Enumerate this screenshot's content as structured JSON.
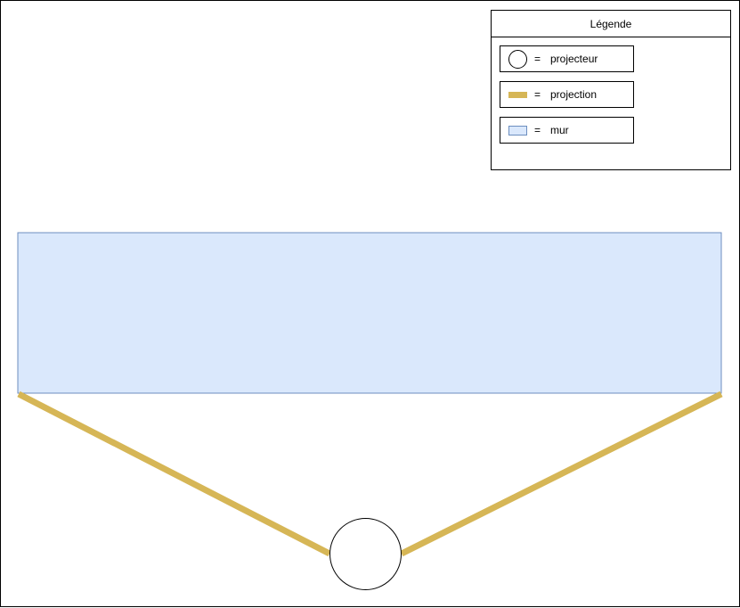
{
  "legend": {
    "title": "Légende",
    "items": [
      {
        "symbol": "=",
        "label": "projecteur",
        "icon": "circle-icon"
      },
      {
        "symbol": "=",
        "label": "projection",
        "icon": "bar-icon"
      },
      {
        "symbol": "=",
        "label": "mur",
        "icon": "rectangle-icon"
      }
    ]
  },
  "colors": {
    "wall_fill": "#dae8fc",
    "wall_stroke": "#6c8ebf",
    "projection": "#d6b656",
    "projector_fill": "#ffffff",
    "projector_stroke": "#000000"
  }
}
